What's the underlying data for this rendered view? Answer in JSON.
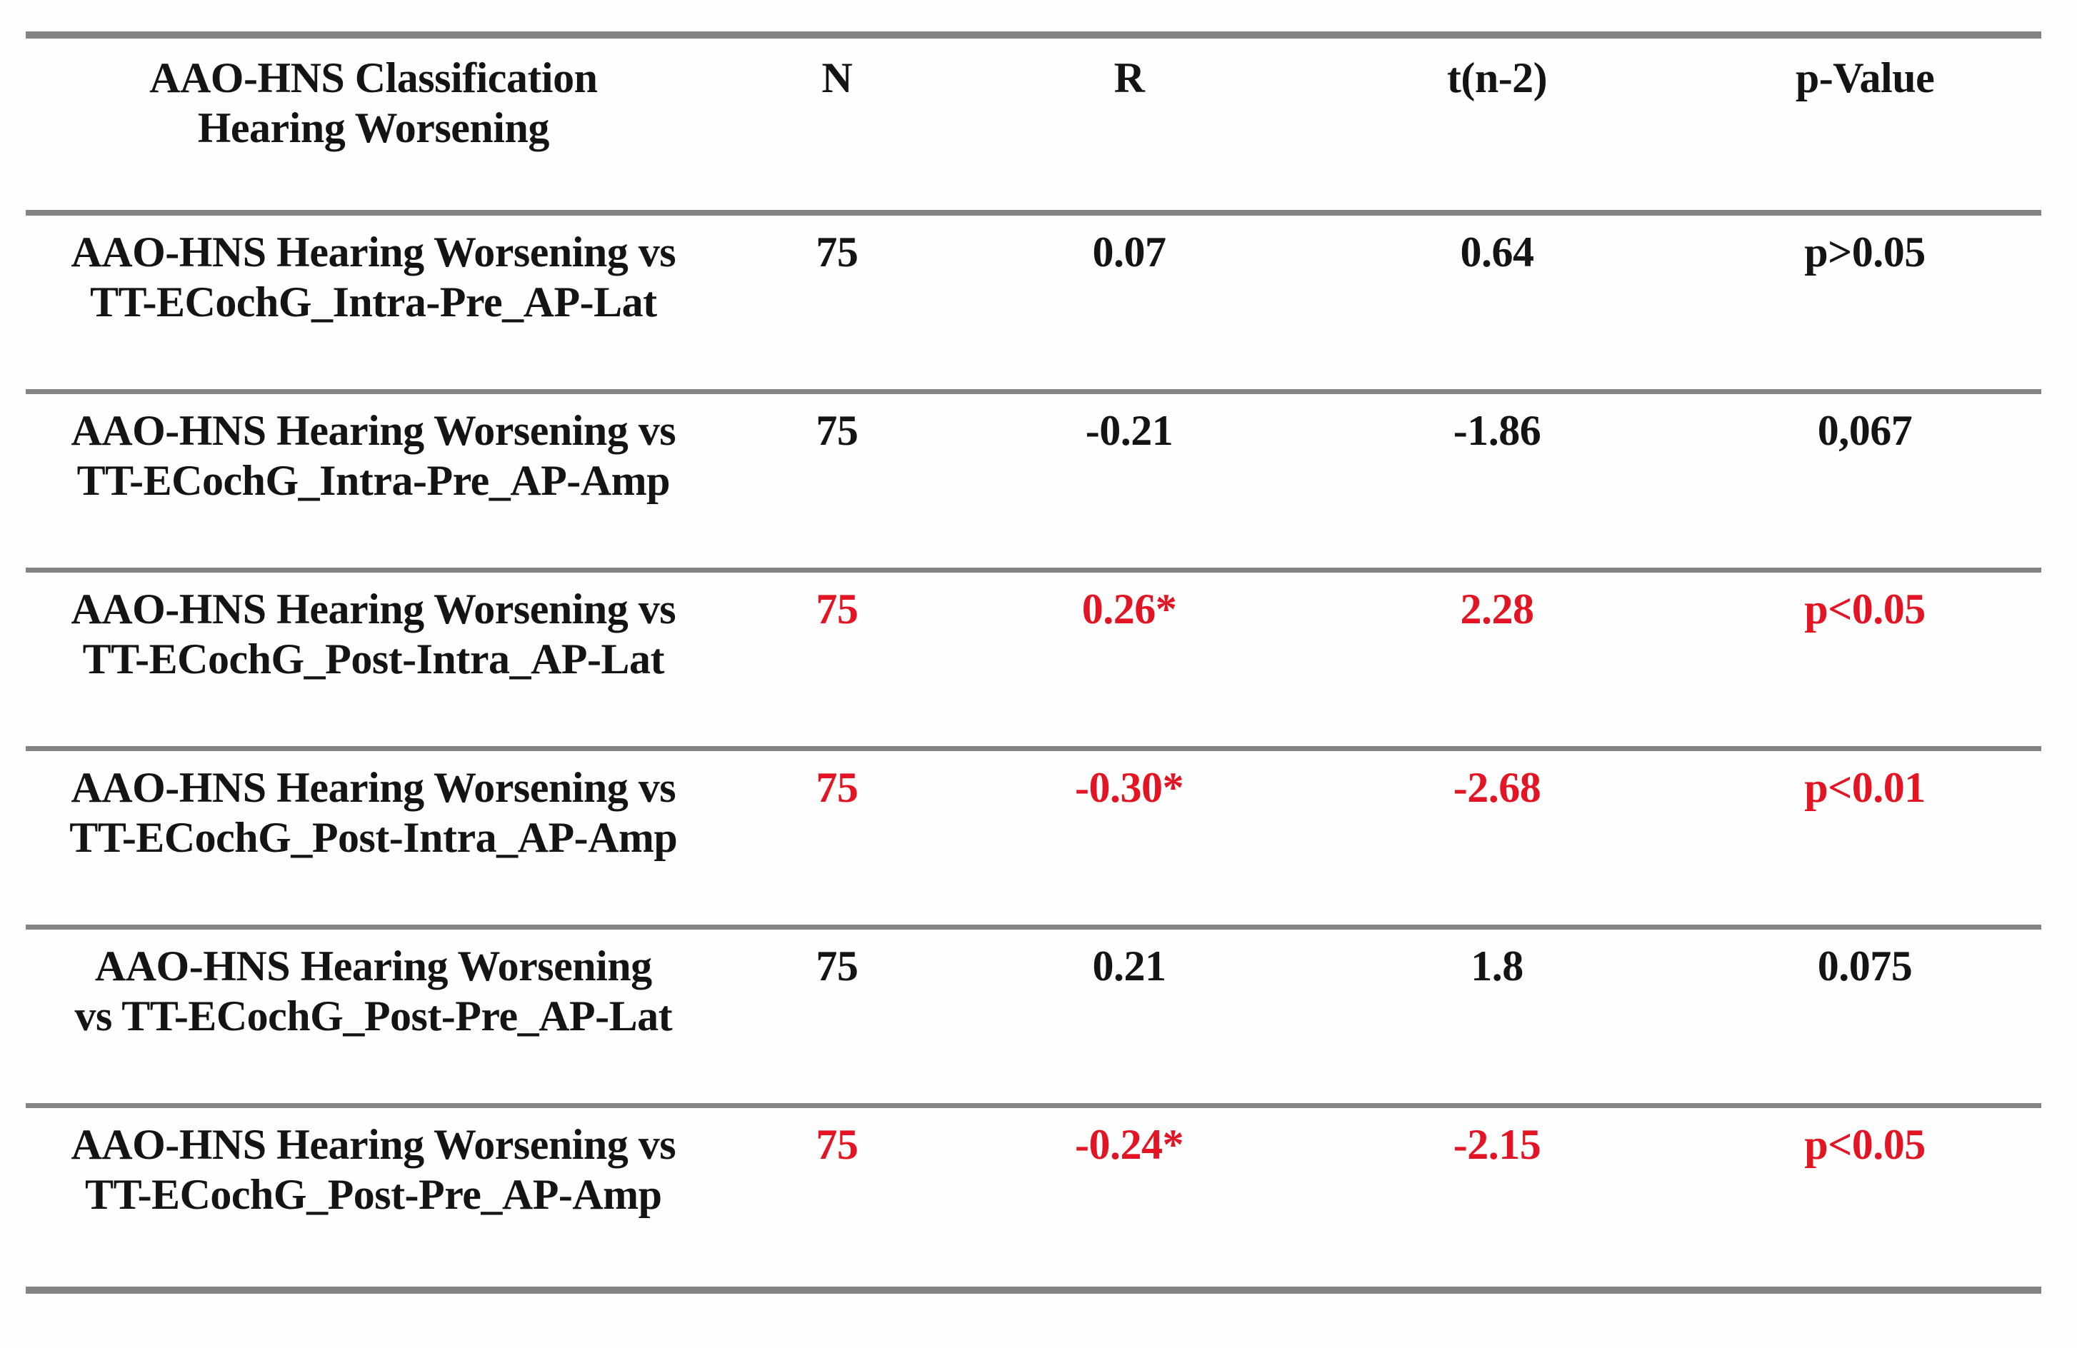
{
  "table": {
    "header": {
      "classification_line1": "AAO-HNS Classification",
      "classification_line2": "Hearing Worsening",
      "n": "N",
      "r": "R",
      "t": "t(n-2)",
      "p": "p-Value"
    },
    "rows": [
      {
        "label_line1": "AAO-HNS Hearing Worsening vs",
        "label_line2": "TT-ECochG_Intra-Pre_AP-Lat",
        "n": "75",
        "r": "0.07",
        "t": "0.64",
        "p": "p>0.05",
        "highlight": false
      },
      {
        "label_line1": "AAO-HNS Hearing Worsening vs",
        "label_line2": "TT-ECochG_Intra-Pre_AP-Amp",
        "n": "75",
        "r": "-0.21",
        "t": "-1.86",
        "p": "0,067",
        "highlight": false
      },
      {
        "label_line1": "AAO-HNS Hearing Worsening vs",
        "label_line2": "TT-ECochG_Post-Intra_AP-Lat",
        "n": "75",
        "r": "0.26*",
        "t": "2.28",
        "p": "p<0.05",
        "highlight": true
      },
      {
        "label_line1": "AAO-HNS Hearing Worsening vs",
        "label_line2": "TT-ECochG_Post-Intra_AP-Amp",
        "n": "75",
        "r": "-0.30*",
        "t": "-2.68",
        "p": "p<0.01",
        "highlight": true
      },
      {
        "label_line1": "AAO-HNS Hearing Worsening",
        "label_line2": "vs TT-ECochG_Post-Pre_AP-Lat",
        "n": "75",
        "r": "0.21",
        "t": "1.8",
        "p": "0.075",
        "highlight": false
      },
      {
        "label_line1": "AAO-HNS Hearing Worsening vs",
        "label_line2": "TT-ECochG_Post-Pre_AP-Amp",
        "n": "75",
        "r": "-0.24*",
        "t": "-2.15",
        "p": "p<0.05",
        "highlight": true
      }
    ],
    "colors": {
      "significant_red": "#e31423",
      "text_black": "#141414",
      "rule_gray": "#838383"
    }
  }
}
